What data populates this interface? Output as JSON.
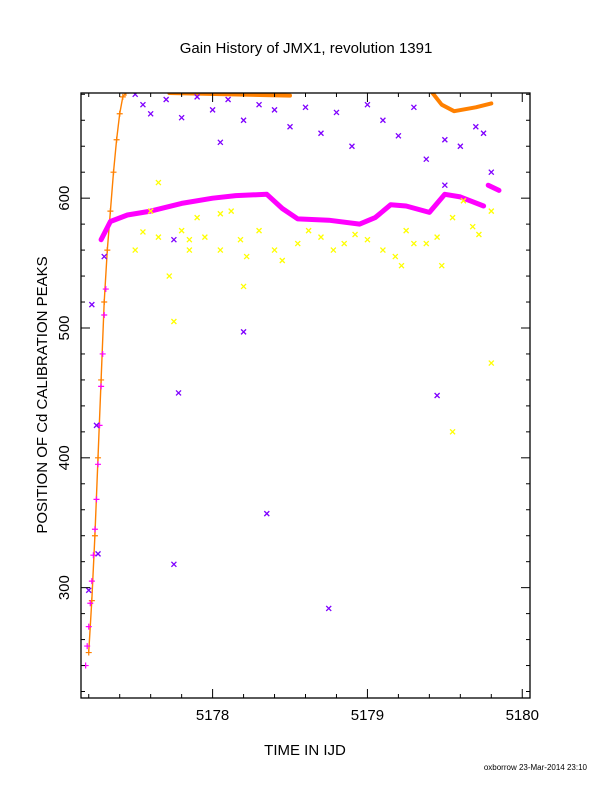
{
  "chart_data": {
    "type": "scatter",
    "title": "Gain History of JMX1, revolution 1391",
    "xlabel": "TIME IN IJD",
    "ylabel": "POSITION OF Cd CALIBRATION PEAKS",
    "footer": "oxborrow 23-Mar-2014 23:10",
    "xlim": [
      5177.15,
      5180.05
    ],
    "ylim": [
      215,
      681
    ],
    "xticks": [
      5178,
      5179,
      5180
    ],
    "xtick_labels": [
      "5178",
      "5179",
      "5180"
    ],
    "yticks": [
      300,
      400,
      500,
      600
    ],
    "ytick_labels": [
      "300",
      "400",
      "500",
      "600"
    ],
    "grid": false,
    "series": [
      {
        "color": "#ff8000",
        "marker": "plus-line",
        "points": [
          [
            5177.2,
            250
          ],
          [
            5177.22,
            290
          ],
          [
            5177.24,
            340
          ],
          [
            5177.26,
            400
          ],
          [
            5177.28,
            460
          ],
          [
            5177.3,
            520
          ],
          [
            5177.32,
            560
          ],
          [
            5177.34,
            590
          ],
          [
            5177.36,
            620
          ],
          [
            5177.38,
            645
          ],
          [
            5177.4,
            665
          ],
          [
            5177.42,
            678
          ],
          [
            5177.44,
            681
          ]
        ],
        "segments": [
          [
            [
              5177.72,
              681
            ],
            [
              5178.5,
              679
            ]
          ],
          [
            [
              5179.42,
              681
            ],
            [
              5179.48,
              672
            ],
            [
              5179.56,
              667
            ],
            [
              5179.7,
              670
            ],
            [
              5179.8,
              673
            ]
          ]
        ]
      },
      {
        "color": "#ff00ff",
        "marker": "thick-line",
        "segments": [
          [
            [
              5177.28,
              568
            ],
            [
              5177.34,
              582
            ],
            [
              5177.45,
              587
            ],
            [
              5177.6,
              590
            ],
            [
              5177.8,
              596
            ],
            [
              5178.0,
              600
            ],
            [
              5178.15,
              602
            ],
            [
              5178.35,
              603
            ],
            [
              5178.45,
              592
            ],
            [
              5178.55,
              584
            ],
            [
              5178.75,
              583
            ],
            [
              5178.95,
              580
            ],
            [
              5179.05,
              585
            ],
            [
              5179.15,
              595
            ],
            [
              5179.25,
              594
            ],
            [
              5179.4,
              589
            ],
            [
              5179.5,
              603
            ],
            [
              5179.6,
              601
            ],
            [
              5179.75,
              594
            ]
          ],
          [
            [
              5179.78,
              610
            ],
            [
              5179.85,
              606
            ]
          ]
        ],
        "scatter": [
          [
            5177.18,
            240
          ],
          [
            5177.19,
            255
          ],
          [
            5177.2,
            270
          ],
          [
            5177.21,
            288
          ],
          [
            5177.22,
            305
          ],
          [
            5177.23,
            325
          ],
          [
            5177.24,
            345
          ],
          [
            5177.25,
            368
          ],
          [
            5177.26,
            395
          ],
          [
            5177.27,
            425
          ],
          [
            5177.28,
            455
          ],
          [
            5177.29,
            480
          ],
          [
            5177.3,
            510
          ],
          [
            5177.31,
            530
          ]
        ]
      },
      {
        "color": "#ffff00",
        "marker": "x",
        "points": [
          [
            5177.5,
            560
          ],
          [
            5177.55,
            574
          ],
          [
            5177.6,
            590
          ],
          [
            5177.65,
            570
          ],
          [
            5177.72,
            540
          ],
          [
            5177.8,
            575
          ],
          [
            5177.85,
            560
          ],
          [
            5177.9,
            585
          ],
          [
            5177.95,
            570
          ],
          [
            5178.05,
            560
          ],
          [
            5178.12,
            590
          ],
          [
            5178.18,
            568
          ],
          [
            5178.22,
            555
          ],
          [
            5178.3,
            575
          ],
          [
            5178.4,
            560
          ],
          [
            5178.45,
            552
          ],
          [
            5178.55,
            565
          ],
          [
            5178.62,
            575
          ],
          [
            5178.7,
            570
          ],
          [
            5178.78,
            560
          ],
          [
            5178.85,
            565
          ],
          [
            5178.92,
            572
          ],
          [
            5179.0,
            568
          ],
          [
            5179.1,
            560
          ],
          [
            5179.18,
            555
          ],
          [
            5179.25,
            575
          ],
          [
            5179.3,
            565
          ],
          [
            5179.38,
            565
          ],
          [
            5179.45,
            570
          ],
          [
            5179.55,
            585
          ],
          [
            5179.62,
            598
          ],
          [
            5179.68,
            578
          ],
          [
            5179.72,
            572
          ],
          [
            5179.8,
            590
          ],
          [
            5177.65,
            612
          ],
          [
            5177.75,
            505
          ],
          [
            5177.85,
            568
          ],
          [
            5178.05,
            588
          ],
          [
            5178.2,
            532
          ],
          [
            5179.55,
            420
          ],
          [
            5179.8,
            473
          ],
          [
            5179.48,
            548
          ],
          [
            5179.22,
            548
          ]
        ]
      },
      {
        "color": "#7f00ff",
        "marker": "x",
        "points": [
          [
            5177.22,
            518
          ],
          [
            5177.25,
            425
          ],
          [
            5177.26,
            326
          ],
          [
            5177.2,
            298
          ],
          [
            5177.3,
            555
          ],
          [
            5177.5,
            680
          ],
          [
            5177.55,
            672
          ],
          [
            5177.6,
            665
          ],
          [
            5177.7,
            676
          ],
          [
            5177.8,
            662
          ],
          [
            5177.9,
            678
          ],
          [
            5178.0,
            668
          ],
          [
            5178.1,
            676
          ],
          [
            5178.2,
            660
          ],
          [
            5178.3,
            672
          ],
          [
            5178.4,
            668
          ],
          [
            5178.5,
            655
          ],
          [
            5178.6,
            670
          ],
          [
            5178.7,
            650
          ],
          [
            5178.8,
            666
          ],
          [
            5178.9,
            640
          ],
          [
            5179.0,
            672
          ],
          [
            5179.1,
            660
          ],
          [
            5179.2,
            648
          ],
          [
            5179.3,
            670
          ],
          [
            5179.38,
            630
          ],
          [
            5179.5,
            610
          ],
          [
            5179.6,
            640
          ],
          [
            5179.7,
            655
          ],
          [
            5179.75,
            650
          ],
          [
            5179.8,
            620
          ],
          [
            5177.75,
            568
          ],
          [
            5177.78,
            450
          ],
          [
            5177.75,
            318
          ],
          [
            5178.2,
            497
          ],
          [
            5178.35,
            357
          ],
          [
            5178.75,
            284
          ],
          [
            5179.45,
            448
          ],
          [
            5178.05,
            643
          ],
          [
            5179.5,
            645
          ]
        ]
      }
    ]
  }
}
